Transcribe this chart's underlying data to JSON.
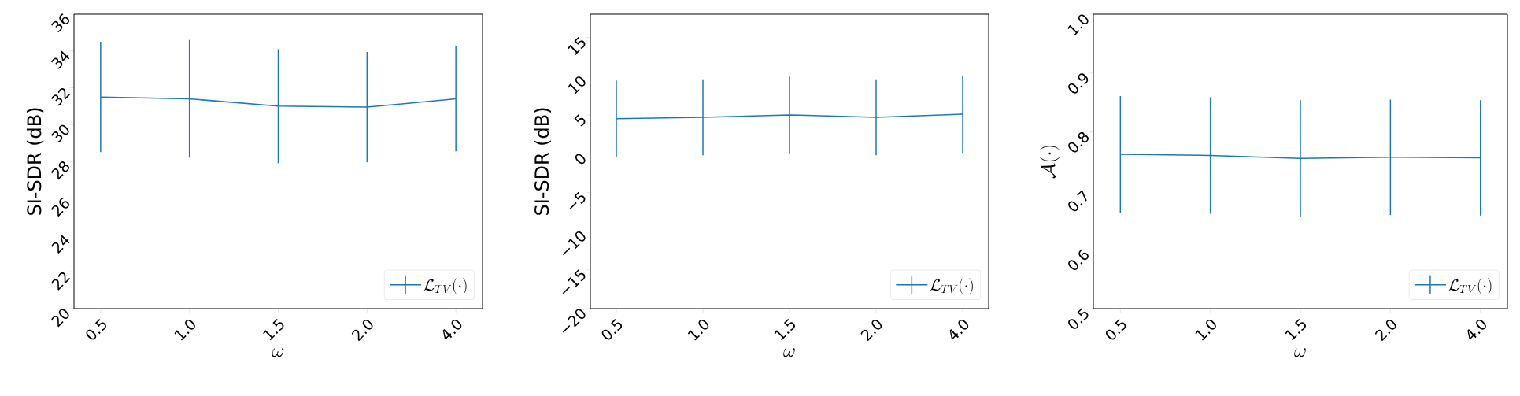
{
  "chart_data": [
    {
      "type": "line",
      "xlabel": "\\omega",
      "ylabel": "SI-SDR (dB)",
      "categories": [
        "0.5",
        "1.0",
        "1.5",
        "2.0",
        "4.0"
      ],
      "series": [
        {
          "name": "\\mathcal{L}_{TV}(\\cdot)",
          "color": "#1f77b4",
          "values": [
            31.5,
            31.4,
            31.0,
            30.95,
            31.4
          ],
          "errors": [
            3.0,
            3.2,
            3.1,
            3.0,
            2.85
          ]
        }
      ],
      "ylim": [
        20,
        36
      ],
      "yticks": [
        20,
        22,
        24,
        26,
        28,
        30,
        32,
        34,
        36
      ],
      "legend": "bottom right",
      "marker": "none",
      "line_style": "solid"
    },
    {
      "type": "line",
      "xlabel": "\\omega",
      "ylabel": "SI-SDR (dB)",
      "categories": [
        "0.5",
        "1.0",
        "1.5",
        "2.0",
        "4.0"
      ],
      "series": [
        {
          "name": "\\mathcal{L}_{TV}(\\cdot)",
          "color": "#1f77b4",
          "values": [
            4.5,
            4.7,
            5.0,
            4.7,
            5.1
          ],
          "errors": [
            4.95,
            4.9,
            4.95,
            4.9,
            5.0
          ]
        }
      ],
      "ylim": [
        -20,
        18
      ],
      "yticks": [
        {
          "value": -20,
          "label": "−20"
        },
        {
          "value": -15,
          "label": "−15"
        },
        {
          "value": -10,
          "label": "−10"
        },
        {
          "value": -5,
          "label": "−5"
        },
        0,
        5,
        10,
        15
      ],
      "legend": "bottom right",
      "marker": "none",
      "line_style": "solid"
    },
    {
      "type": "line",
      "xlabel": "\\omega",
      "ylabel": "\\mathcal{A}(\\cdot)",
      "categories": [
        "0.5",
        "1.0",
        "1.5",
        "2.0",
        "4.0"
      ],
      "series": [
        {
          "name": "\\mathcal{L}_{TV}(\\cdot)",
          "color": "#1f77b4",
          "values": [
            0.762,
            0.76,
            0.755,
            0.757,
            0.756
          ],
          "errors": [
            0.099,
            0.099,
            0.099,
            0.098,
            0.098
          ]
        }
      ],
      "ylim": [
        0.5,
        1.0
      ],
      "yticks": [
        0.5,
        0.6,
        0.7,
        0.8,
        0.9,
        {
          "value": 1.0,
          "label": "1.0"
        }
      ],
      "legend": "bottom right",
      "marker": "none",
      "line_style": "solid"
    }
  ]
}
